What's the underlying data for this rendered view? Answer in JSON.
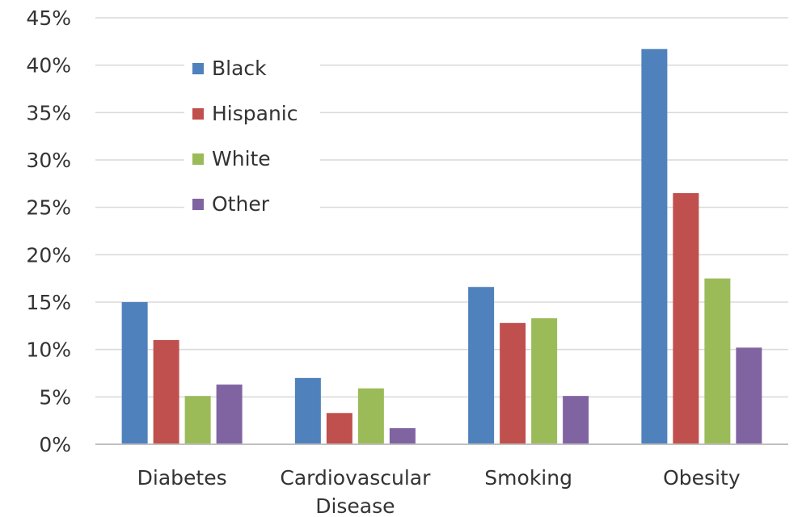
{
  "chart_data": {
    "type": "bar",
    "title": "",
    "xlabel": "",
    "ylabel": "",
    "categories": [
      [
        "Diabetes"
      ],
      [
        "Cardiovascular",
        "Disease"
      ],
      [
        "Smoking"
      ],
      [
        "Obesity"
      ]
    ],
    "series": [
      {
        "name": "Black",
        "color": "#4f81bd",
        "values": [
          15.0,
          7.0,
          16.6,
          41.7
        ]
      },
      {
        "name": "Hispanic",
        "color": "#c0504d",
        "values": [
          11.0,
          3.3,
          12.8,
          26.5
        ]
      },
      {
        "name": "White",
        "color": "#9bbb59",
        "values": [
          5.1,
          5.9,
          13.3,
          17.5
        ]
      },
      {
        "name": "Other",
        "color": "#8064a2",
        "values": [
          6.3,
          1.7,
          5.1,
          10.2
        ]
      }
    ],
    "ylim": [
      0,
      45
    ],
    "ytick_values": [
      0,
      5,
      10,
      15,
      20,
      25,
      30,
      35,
      40,
      45
    ],
    "ytick_labels": [
      "0%",
      "5%",
      "10%",
      "15%",
      "20%",
      "25%",
      "30%",
      "35%",
      "40%",
      "45%"
    ],
    "grid": true,
    "legend": "upper-left"
  }
}
